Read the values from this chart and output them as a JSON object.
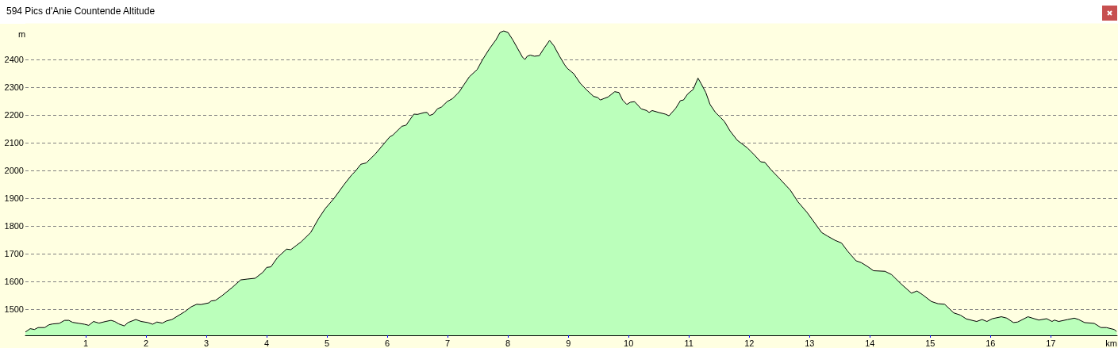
{
  "chart_data": {
    "type": "area",
    "title": "594 Pics d'Anie Countende Altitude",
    "xlabel": "km",
    "ylabel": "m",
    "x": [
      0,
      0.08,
      0.15,
      0.21,
      0.32,
      0.39,
      0.45,
      0.56,
      0.65,
      0.72,
      0.78,
      0.89,
      0.98,
      1.05,
      1.13,
      1.22,
      1.33,
      1.42,
      1.48,
      1.55,
      1.64,
      1.7,
      1.83,
      1.92,
      2.03,
      2.11,
      2.18,
      2.27,
      2.34,
      2.43,
      2.64,
      2.75,
      2.84,
      2.91,
      3.04,
      3.08,
      3.15,
      3.26,
      3.43,
      3.57,
      3.68,
      3.81,
      3.94,
      4.0,
      4.07,
      4.18,
      4.33,
      4.4,
      4.49,
      4.57,
      4.73,
      4.86,
      4.97,
      5.12,
      5.28,
      5.41,
      5.47,
      5.56,
      5.65,
      5.8,
      6.04,
      6.09,
      6.24,
      6.31,
      6.44,
      6.5,
      6.62,
      6.66,
      6.7,
      6.76,
      6.83,
      6.9,
      6.99,
      7.08,
      7.16,
      7.2,
      7.27,
      7.36,
      7.49,
      7.58,
      7.69,
      7.8,
      7.87,
      7.93,
      8.0,
      8.08,
      8.24,
      8.28,
      8.32,
      8.37,
      8.44,
      8.52,
      8.59,
      8.69,
      8.76,
      8.85,
      8.94,
      8.98,
      9.09,
      9.2,
      9.31,
      9.42,
      9.49,
      9.53,
      9.6,
      9.66,
      9.77,
      9.84,
      9.9,
      9.97,
      10.03,
      10.1,
      10.21,
      10.3,
      10.34,
      10.39,
      10.5,
      10.61,
      10.67,
      10.78,
      10.86,
      10.91,
      10.98,
      11.07,
      11.15,
      11.2,
      11.28,
      11.35,
      11.44,
      11.53,
      11.59,
      11.68,
      11.8,
      11.97,
      12.08,
      12.19,
      12.26,
      12.35,
      12.5,
      12.68,
      12.81,
      12.96,
      13.09,
      13.2,
      13.29,
      13.42,
      13.53,
      13.63,
      13.77,
      13.86,
      13.97,
      14.06,
      14.25,
      14.36,
      14.52,
      14.69,
      14.78,
      14.87,
      15.02,
      15.13,
      15.24,
      15.39,
      15.5,
      15.6,
      15.77,
      15.86,
      15.94,
      16.03,
      16.18,
      16.27,
      16.38,
      16.45,
      16.62,
      16.8,
      16.93,
      17.02,
      17.06,
      17.13,
      17.28,
      17.39,
      17.46,
      17.56,
      17.72,
      17.83,
      17.92,
      18.05,
      18.09
    ],
    "values": [
      1418,
      1430,
      1427,
      1434,
      1434,
      1444,
      1447,
      1449,
      1460,
      1460,
      1453,
      1449,
      1446,
      1442,
      1456,
      1450,
      1456,
      1460,
      1456,
      1447,
      1440,
      1452,
      1463,
      1456,
      1452,
      1446,
      1454,
      1450,
      1458,
      1463,
      1491,
      1509,
      1518,
      1517,
      1523,
      1530,
      1532,
      1549,
      1579,
      1606,
      1609,
      1612,
      1634,
      1651,
      1653,
      1687,
      1717,
      1715,
      1730,
      1743,
      1777,
      1827,
      1863,
      1901,
      1949,
      1985,
      1998,
      2023,
      2028,
      2060,
      2122,
      2128,
      2160,
      2164,
      2204,
      2203,
      2210,
      2210,
      2199,
      2204,
      2223,
      2230,
      2249,
      2260,
      2277,
      2287,
      2310,
      2339,
      2365,
      2401,
      2439,
      2472,
      2499,
      2504,
      2499,
      2472,
      2410,
      2401,
      2413,
      2417,
      2413,
      2415,
      2439,
      2470,
      2451,
      2415,
      2382,
      2370,
      2350,
      2315,
      2290,
      2268,
      2264,
      2255,
      2261,
      2266,
      2285,
      2282,
      2255,
      2239,
      2247,
      2249,
      2223,
      2217,
      2210,
      2217,
      2210,
      2204,
      2198,
      2225,
      2253,
      2255,
      2277,
      2293,
      2334,
      2315,
      2282,
      2239,
      2210,
      2191,
      2177,
      2144,
      2110,
      2082,
      2058,
      2032,
      2030,
      2006,
      1972,
      1930,
      1887,
      1849,
      1810,
      1777,
      1765,
      1749,
      1739,
      1710,
      1675,
      1668,
      1653,
      1639,
      1637,
      1625,
      1591,
      1558,
      1566,
      1553,
      1528,
      1520,
      1518,
      1487,
      1479,
      1465,
      1456,
      1463,
      1456,
      1466,
      1473,
      1468,
      1452,
      1454,
      1473,
      1461,
      1466,
      1456,
      1461,
      1456,
      1463,
      1468,
      1463,
      1452,
      1449,
      1434,
      1434,
      1427,
      1420
    ],
    "color": "#bbffbb",
    "xlim": [
      0,
      18.1
    ],
    "xticks": [
      1,
      2,
      3,
      4,
      5,
      6,
      7,
      8,
      9,
      10,
      11,
      12,
      13,
      14,
      15,
      16,
      17
    ],
    "ylim": [
      1406,
      2530
    ],
    "yticks": [
      1500,
      1600,
      1700,
      1800,
      1900,
      2000,
      2100,
      2200,
      2300,
      2400
    ],
    "grid": "y"
  }
}
